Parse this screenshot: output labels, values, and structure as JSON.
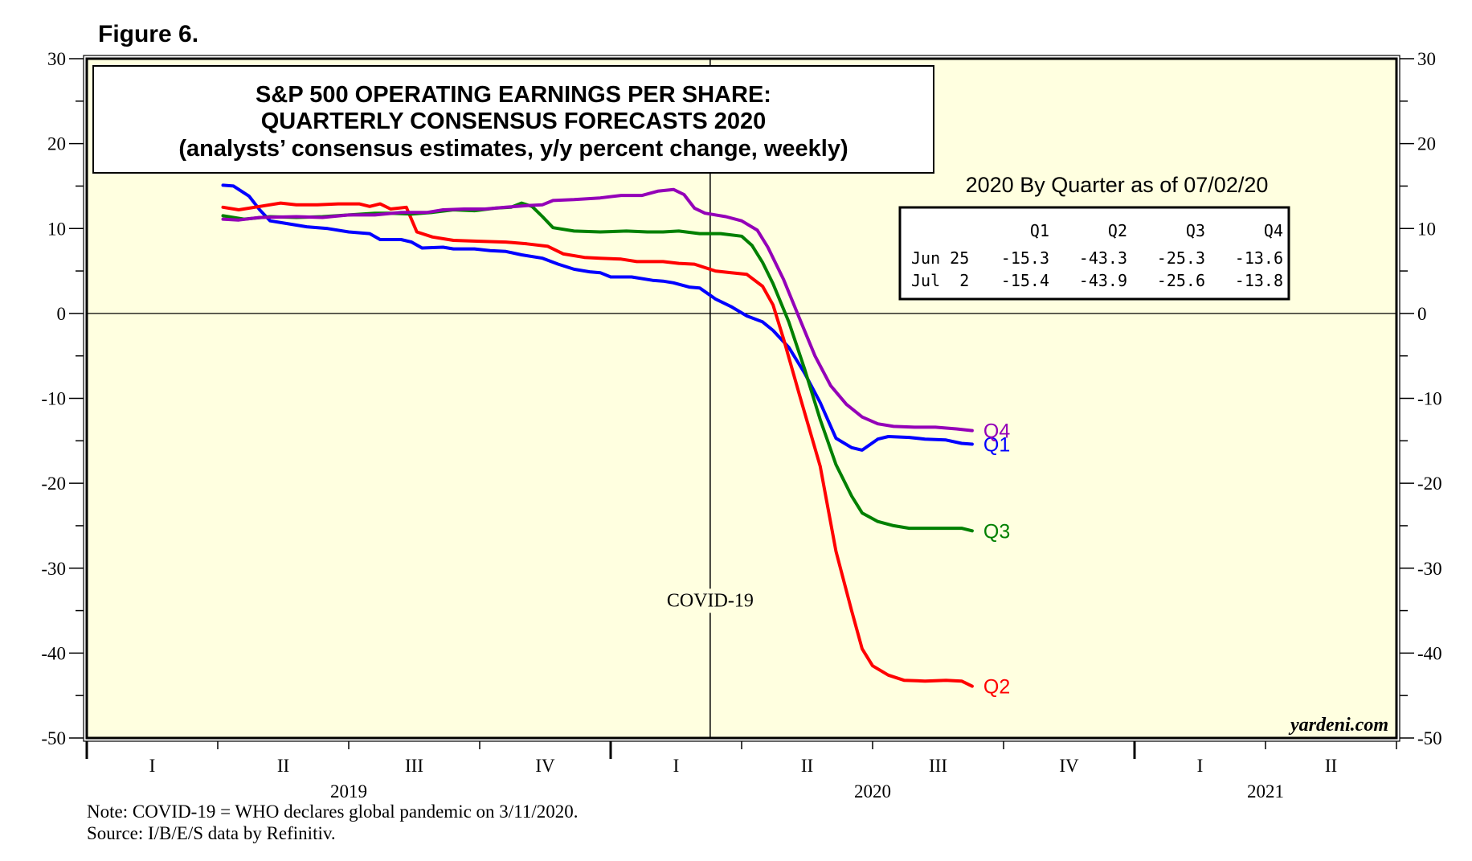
{
  "figure_label": "Figure 6.",
  "chart_data": {
    "type": "line",
    "title_lines": [
      "S&P 500 OPERATING EARNINGS PER SHARE:",
      "QUARTERLY CONSENSUS FORECASTS 2020",
      "(analysts’ consensus estimates, y/y percent change, weekly)"
    ],
    "ylim": [
      -50,
      30
    ],
    "y_ticks": [
      30,
      20,
      10,
      0,
      -10,
      -20,
      -30,
      -40,
      -50
    ],
    "y_tick_labels": [
      "30",
      "20",
      "10",
      "0",
      "-10",
      "-20",
      "-30",
      "-40",
      "-50"
    ],
    "xlim": [
      2019.0,
      2021.5
    ],
    "quarter_labels": [
      {
        "label": "I",
        "x": 2019.125
      },
      {
        "label": "II",
        "x": 2019.375
      },
      {
        "label": "III",
        "x": 2019.625
      },
      {
        "label": "IV",
        "x": 2019.875
      },
      {
        "label": "I",
        "x": 2020.125
      },
      {
        "label": "II",
        "x": 2020.375
      },
      {
        "label": "III",
        "x": 2020.625
      },
      {
        "label": "IV",
        "x": 2020.875
      },
      {
        "label": "I",
        "x": 2021.125
      },
      {
        "label": "II",
        "x": 2021.375
      }
    ],
    "year_labels": [
      {
        "label": "2019",
        "x": 2019.5
      },
      {
        "label": "2020",
        "x": 2020.5
      },
      {
        "label": "2021",
        "x": 2021.25
      }
    ],
    "year_boundaries": [
      2020.0,
      2021.0
    ],
    "zero_line": 0,
    "annotation": {
      "label": "COVID-19",
      "x": 2020.19,
      "y": -34.5
    },
    "vline_x": 2020.19,
    "colors": {
      "Q1": "#0000ff",
      "Q2": "#ff0000",
      "Q3": "#008000",
      "Q4": "#9400b8",
      "background": "#ffffe0"
    },
    "series": [
      {
        "name": "Q1",
        "end_label": "Q1",
        "label_y": -15.4,
        "points": [
          [
            2019.26,
            15.1
          ],
          [
            2019.28,
            15.0
          ],
          [
            2019.31,
            13.8
          ],
          [
            2019.33,
            12.2
          ],
          [
            2019.35,
            10.9
          ],
          [
            2019.38,
            10.6
          ],
          [
            2019.42,
            10.2
          ],
          [
            2019.46,
            10.0
          ],
          [
            2019.5,
            9.6
          ],
          [
            2019.54,
            9.4
          ],
          [
            2019.56,
            8.7
          ],
          [
            2019.6,
            8.7
          ],
          [
            2019.62,
            8.4
          ],
          [
            2019.64,
            7.7
          ],
          [
            2019.68,
            7.8
          ],
          [
            2019.7,
            7.6
          ],
          [
            2019.74,
            7.6
          ],
          [
            2019.77,
            7.4
          ],
          [
            2019.8,
            7.3
          ],
          [
            2019.83,
            6.9
          ],
          [
            2019.87,
            6.5
          ],
          [
            2019.9,
            5.8
          ],
          [
            2019.93,
            5.2
          ],
          [
            2019.96,
            4.9
          ],
          [
            2019.98,
            4.8
          ],
          [
            2020.0,
            4.3
          ],
          [
            2020.04,
            4.3
          ],
          [
            2020.08,
            3.9
          ],
          [
            2020.1,
            3.8
          ],
          [
            2020.12,
            3.6
          ],
          [
            2020.15,
            3.1
          ],
          [
            2020.17,
            3.0
          ],
          [
            2020.2,
            1.7
          ],
          [
            2020.23,
            0.8
          ],
          [
            2020.26,
            -0.3
          ],
          [
            2020.29,
            -1.0
          ],
          [
            2020.31,
            -2.0
          ],
          [
            2020.34,
            -4.0
          ],
          [
            2020.37,
            -7.0
          ],
          [
            2020.4,
            -10.5
          ],
          [
            2020.43,
            -14.7
          ],
          [
            2020.46,
            -15.8
          ],
          [
            2020.48,
            -16.1
          ],
          [
            2020.51,
            -14.8
          ],
          [
            2020.53,
            -14.5
          ],
          [
            2020.57,
            -14.6
          ],
          [
            2020.6,
            -14.8
          ],
          [
            2020.64,
            -14.9
          ],
          [
            2020.67,
            -15.3
          ],
          [
            2020.69,
            -15.4
          ]
        ]
      },
      {
        "name": "Q2",
        "end_label": "Q2",
        "label_y": -43.9,
        "points": [
          [
            2019.26,
            12.5
          ],
          [
            2019.29,
            12.2
          ],
          [
            2019.33,
            12.6
          ],
          [
            2019.37,
            13.0
          ],
          [
            2019.4,
            12.8
          ],
          [
            2019.44,
            12.8
          ],
          [
            2019.48,
            12.9
          ],
          [
            2019.52,
            12.9
          ],
          [
            2019.54,
            12.6
          ],
          [
            2019.56,
            12.9
          ],
          [
            2019.58,
            12.3
          ],
          [
            2019.61,
            12.5
          ],
          [
            2019.63,
            9.6
          ],
          [
            2019.66,
            9.0
          ],
          [
            2019.7,
            8.6
          ],
          [
            2019.75,
            8.5
          ],
          [
            2019.8,
            8.4
          ],
          [
            2019.84,
            8.2
          ],
          [
            2019.88,
            7.9
          ],
          [
            2019.91,
            7.0
          ],
          [
            2019.95,
            6.6
          ],
          [
            2019.98,
            6.5
          ],
          [
            2020.02,
            6.4
          ],
          [
            2020.05,
            6.1
          ],
          [
            2020.1,
            6.1
          ],
          [
            2020.13,
            5.9
          ],
          [
            2020.16,
            5.8
          ],
          [
            2020.2,
            5.0
          ],
          [
            2020.23,
            4.8
          ],
          [
            2020.26,
            4.6
          ],
          [
            2020.29,
            3.2
          ],
          [
            2020.31,
            1.0
          ],
          [
            2020.33,
            -3.0
          ],
          [
            2020.36,
            -9.5
          ],
          [
            2020.4,
            -18.0
          ],
          [
            2020.43,
            -28.0
          ],
          [
            2020.46,
            -35.0
          ],
          [
            2020.48,
            -39.5
          ],
          [
            2020.5,
            -41.5
          ],
          [
            2020.53,
            -42.6
          ],
          [
            2020.56,
            -43.2
          ],
          [
            2020.6,
            -43.3
          ],
          [
            2020.64,
            -43.2
          ],
          [
            2020.67,
            -43.3
          ],
          [
            2020.69,
            -43.9
          ]
        ]
      },
      {
        "name": "Q3",
        "end_label": "Q3",
        "label_y": -25.6,
        "points": [
          [
            2019.26,
            11.5
          ],
          [
            2019.3,
            11.1
          ],
          [
            2019.35,
            11.4
          ],
          [
            2019.4,
            11.3
          ],
          [
            2019.45,
            11.4
          ],
          [
            2019.5,
            11.6
          ],
          [
            2019.55,
            11.8
          ],
          [
            2019.58,
            11.8
          ],
          [
            2019.62,
            11.7
          ],
          [
            2019.66,
            11.9
          ],
          [
            2019.7,
            12.2
          ],
          [
            2019.74,
            12.1
          ],
          [
            2019.78,
            12.4
          ],
          [
            2019.81,
            12.5
          ],
          [
            2019.83,
            13.0
          ],
          [
            2019.85,
            12.6
          ],
          [
            2019.87,
            11.4
          ],
          [
            2019.89,
            10.1
          ],
          [
            2019.93,
            9.7
          ],
          [
            2019.98,
            9.6
          ],
          [
            2020.03,
            9.7
          ],
          [
            2020.07,
            9.6
          ],
          [
            2020.1,
            9.6
          ],
          [
            2020.13,
            9.7
          ],
          [
            2020.17,
            9.4
          ],
          [
            2020.21,
            9.4
          ],
          [
            2020.25,
            9.1
          ],
          [
            2020.27,
            8.0
          ],
          [
            2020.29,
            6.0
          ],
          [
            2020.31,
            3.5
          ],
          [
            2020.34,
            -1.0
          ],
          [
            2020.37,
            -6.5
          ],
          [
            2020.4,
            -12.5
          ],
          [
            2020.43,
            -17.8
          ],
          [
            2020.46,
            -21.5
          ],
          [
            2020.48,
            -23.5
          ],
          [
            2020.51,
            -24.5
          ],
          [
            2020.54,
            -25.0
          ],
          [
            2020.57,
            -25.3
          ],
          [
            2020.6,
            -25.3
          ],
          [
            2020.64,
            -25.3
          ],
          [
            2020.67,
            -25.3
          ],
          [
            2020.69,
            -25.6
          ]
        ]
      },
      {
        "name": "Q4",
        "end_label": "Q4",
        "label_y": -13.8,
        "points": [
          [
            2019.26,
            11.1
          ],
          [
            2019.29,
            11.0
          ],
          [
            2019.33,
            11.3
          ],
          [
            2019.4,
            11.4
          ],
          [
            2019.45,
            11.3
          ],
          [
            2019.5,
            11.6
          ],
          [
            2019.55,
            11.6
          ],
          [
            2019.6,
            11.9
          ],
          [
            2019.65,
            11.9
          ],
          [
            2019.68,
            12.2
          ],
          [
            2019.72,
            12.3
          ],
          [
            2019.76,
            12.3
          ],
          [
            2019.8,
            12.5
          ],
          [
            2019.84,
            12.7
          ],
          [
            2019.87,
            12.8
          ],
          [
            2019.89,
            13.3
          ],
          [
            2019.93,
            13.4
          ],
          [
            2019.98,
            13.6
          ],
          [
            2020.02,
            13.9
          ],
          [
            2020.06,
            13.9
          ],
          [
            2020.09,
            14.4
          ],
          [
            2020.12,
            14.6
          ],
          [
            2020.14,
            14.0
          ],
          [
            2020.16,
            12.4
          ],
          [
            2020.18,
            11.8
          ],
          [
            2020.22,
            11.4
          ],
          [
            2020.25,
            10.9
          ],
          [
            2020.28,
            9.8
          ],
          [
            2020.3,
            7.8
          ],
          [
            2020.33,
            4.0
          ],
          [
            2020.36,
            -0.5
          ],
          [
            2020.39,
            -5.0
          ],
          [
            2020.42,
            -8.5
          ],
          [
            2020.45,
            -10.7
          ],
          [
            2020.48,
            -12.2
          ],
          [
            2020.51,
            -13.0
          ],
          [
            2020.54,
            -13.3
          ],
          [
            2020.58,
            -13.4
          ],
          [
            2020.62,
            -13.4
          ],
          [
            2020.66,
            -13.6
          ],
          [
            2020.69,
            -13.8
          ]
        ]
      }
    ]
  },
  "legend_table": {
    "title": "2020 By Quarter as of 07/02/20",
    "columns": [
      "Q1",
      "Q2",
      "Q3",
      "Q4"
    ],
    "rows": [
      {
        "date": "Jun 25",
        "values": [
          "-15.3",
          "-43.3",
          "-25.3",
          "-13.6"
        ]
      },
      {
        "date": "Jul  2",
        "values": [
          "-15.4",
          "-43.9",
          "-25.6",
          "-13.8"
        ]
      }
    ]
  },
  "watermark": "yardeni.com",
  "notes": [
    "Note: COVID-19 = WHO declares global pandemic on 3/11/2020.",
    "Source: I/B/E/S data by Refinitiv."
  ]
}
